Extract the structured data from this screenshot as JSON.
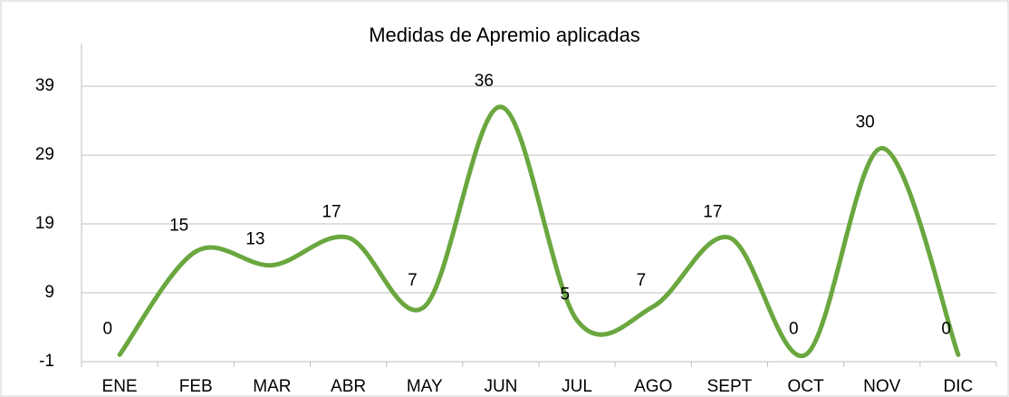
{
  "chart_data": {
    "type": "line",
    "title": "Medidas de Apremio aplicadas",
    "categories": [
      "ENE",
      "FEB",
      "MAR",
      "ABR",
      "MAY",
      "JUN",
      "JUL",
      "AGO",
      "SEPT",
      "OCT",
      "NOV",
      "DIC"
    ],
    "values": [
      0,
      15,
      13,
      17,
      7,
      36,
      5,
      7,
      17,
      0,
      30,
      0
    ],
    "color": "#6aa73f",
    "smooth": true,
    "ylim": [
      -1,
      45.2
    ],
    "yticks": [
      -1,
      9,
      19,
      29,
      39
    ],
    "grid": true
  }
}
